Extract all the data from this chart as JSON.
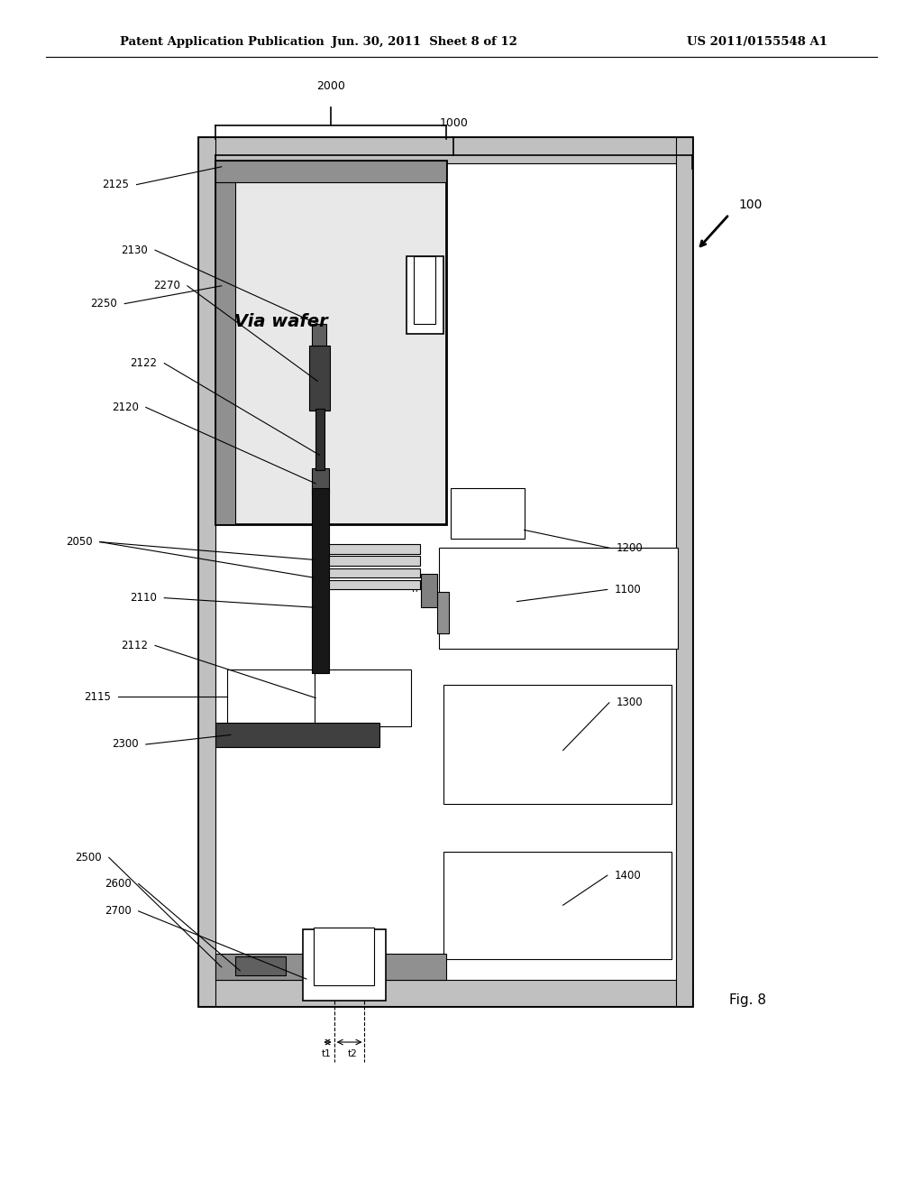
{
  "bg_color": "#ffffff",
  "header_line1": "Patent Application Publication",
  "header_line2": "Jun. 30, 2011  Sheet 8 of 12",
  "header_line3": "US 2011/0155548 A1",
  "fig_label": "Fig. 8",
  "ref_100": "100"
}
